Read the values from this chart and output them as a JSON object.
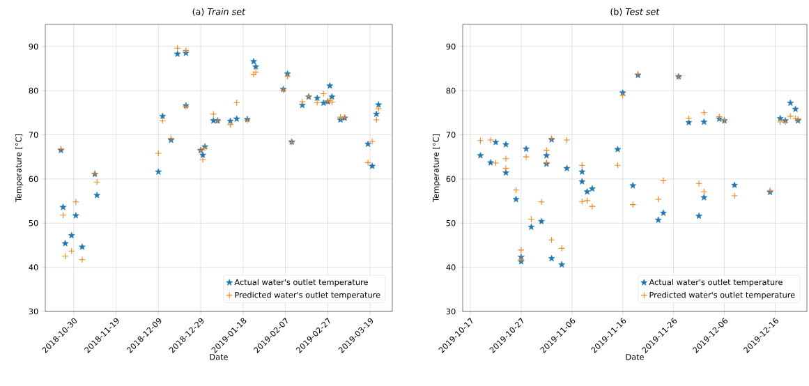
{
  "chart_data": [
    {
      "type": "scatter",
      "title": "(a) *Train set*",
      "xlabel": "Date",
      "ylabel": "Temperature [°C]",
      "grid": true,
      "legend": "bottom right",
      "xlim": [
        "2018-10-16T14:00",
        "2019-03-29T12:00"
      ],
      "ylim": [
        30,
        95
      ],
      "xticks": [
        {
          "value": "2018-10-30",
          "label": "2018-10-30"
        },
        {
          "value": "2018-11-19",
          "label": "2018-11-19"
        },
        {
          "value": "2018-12-09",
          "label": "2018-12-09"
        },
        {
          "value": "2018-12-29",
          "label": "2018-12-29"
        },
        {
          "value": "2019-01-18",
          "label": "2019-01-18"
        },
        {
          "value": "2019-02-07",
          "label": "2019-02-07"
        },
        {
          "value": "2019-02-27",
          "label": "2019-02-27"
        },
        {
          "value": "2019-03-19",
          "label": "2019-03-19"
        }
      ],
      "yticks": [
        30,
        40,
        50,
        60,
        70,
        80,
        90
      ],
      "x": [
        "2018-10-24",
        "2018-10-25",
        "2018-10-26",
        "2018-10-29",
        "2018-10-31",
        "2018-11-03",
        "2018-11-09",
        "2018-11-10",
        "2018-12-09",
        "2018-12-11",
        "2018-12-15",
        "2018-12-18",
        "2018-12-22",
        "2018-12-22",
        "2018-12-29",
        "2018-12-30",
        "2018-12-31",
        "2019-01-04",
        "2019-01-06",
        "2019-01-12",
        "2019-01-15",
        "2019-01-20",
        "2019-01-23",
        "2019-01-24",
        "2019-02-06",
        "2019-02-08",
        "2019-02-10",
        "2019-02-15",
        "2019-02-18",
        "2019-02-22",
        "2019-02-25",
        "2019-02-27",
        "2019-02-28",
        "2019-03-01",
        "2019-03-05",
        "2019-03-07",
        "2019-03-18",
        "2019-03-20",
        "2019-03-22",
        "2019-03-23"
      ],
      "series": [
        {
          "name": "Actual water's outlet temperature",
          "color": "#1f77b4",
          "marker": "star",
          "values": [
            66.5,
            53.6,
            45.4,
            47.2,
            51.7,
            44.6,
            61.1,
            56.3,
            61.6,
            74.2,
            68.8,
            88.3,
            88.5,
            76.6,
            66.5,
            65.4,
            67.3,
            73.2,
            73.2,
            73.1,
            73.6,
            73.5,
            86.6,
            85.4,
            80.3,
            83.8,
            68.4,
            76.7,
            78.6,
            78.3,
            77.2,
            77.5,
            81.1,
            78.6,
            73.4,
            73.8,
            67.9,
            62.9,
            74.7,
            76.8
          ]
        },
        {
          "name": "Predicted water's outlet temperature",
          "color": "#ff7f0e",
          "marker": "cross",
          "values": [
            66.8,
            51.8,
            42.5,
            43.7,
            54.8,
            41.7,
            61.2,
            59.3,
            65.8,
            73.2,
            69.2,
            89.6,
            89.1,
            76.4,
            66.5,
            64.4,
            67.0,
            74.7,
            73.2,
            72.3,
            77.3,
            73.3,
            83.7,
            84.2,
            80.1,
            83.2,
            68.3,
            77.5,
            78.7,
            77.3,
            79.3,
            77.6,
            77.8,
            77.4,
            74.0,
            74.0,
            63.7,
            68.5,
            73.4,
            75.9
          ]
        }
      ]
    },
    {
      "type": "scatter",
      "title": "(b) *Test set*",
      "xlabel": "Date",
      "ylabel": "Temperature [°C]",
      "grid": true,
      "legend": "bottom right",
      "xlim": [
        "2019-10-15T12:00",
        "2019-12-22T06:00"
      ],
      "ylim": [
        30,
        95
      ],
      "xticks": [
        {
          "value": "2019-10-17",
          "label": "2019-10-17"
        },
        {
          "value": "2019-10-27",
          "label": "2019-10-27"
        },
        {
          "value": "2019-11-06",
          "label": "2019-11-06"
        },
        {
          "value": "2019-11-16",
          "label": "2019-11-16"
        },
        {
          "value": "2019-11-26",
          "label": "2019-11-26"
        },
        {
          "value": "2019-12-06",
          "label": "2019-12-06"
        },
        {
          "value": "2019-12-16",
          "label": "2019-12-16"
        }
      ],
      "yticks": [
        30,
        40,
        50,
        60,
        70,
        80,
        90
      ],
      "x": [
        "2019-10-19",
        "2019-10-21",
        "2019-10-22",
        "2019-10-24",
        "2019-10-24",
        "2019-10-26",
        "2019-10-27",
        "2019-10-27",
        "2019-10-28",
        "2019-10-29",
        "2019-10-31",
        "2019-11-01",
        "2019-11-01",
        "2019-11-02",
        "2019-11-02",
        "2019-11-04",
        "2019-11-05",
        "2019-11-08",
        "2019-11-08",
        "2019-11-09",
        "2019-11-10",
        "2019-11-15",
        "2019-11-16",
        "2019-11-18",
        "2019-11-19",
        "2019-11-23",
        "2019-11-24",
        "2019-11-27",
        "2019-11-29",
        "2019-12-01",
        "2019-12-02",
        "2019-12-02",
        "2019-12-05",
        "2019-12-06",
        "2019-12-08",
        "2019-12-15",
        "2019-12-17",
        "2019-12-18",
        "2019-12-19",
        "2019-12-20",
        "2019-12-20T12:00"
      ],
      "series": [
        {
          "name": "Actual water's outlet temperature",
          "color": "#1f77b4",
          "marker": "star",
          "values": [
            65.3,
            63.7,
            68.3,
            67.8,
            61.4,
            55.4,
            42.3,
            41.3,
            66.8,
            49.1,
            50.4,
            65.3,
            63.4,
            68.9,
            42.0,
            40.6,
            62.4,
            61.6,
            59.4,
            57.1,
            57.8,
            66.7,
            79.5,
            58.5,
            83.5,
            50.7,
            52.3,
            83.2,
            72.8,
            51.6,
            55.8,
            72.9,
            73.6,
            73.2,
            58.6,
            57.0,
            73.7,
            73.2,
            77.2,
            75.8,
            73.2
          ]
        },
        {
          "name": "Predicted water's outlet temperature",
          "color": "#ff7f0e",
          "marker": "cross",
          "values": [
            68.7,
            68.8,
            63.6,
            64.6,
            62.4,
            57.5,
            43.9,
            41.8,
            65.0,
            50.9,
            54.8,
            66.5,
            63.7,
            69.2,
            46.2,
            44.3,
            68.8,
            63.1,
            54.9,
            55.1,
            53.8,
            63.1,
            78.9,
            54.2,
            83.8,
            55.4,
            59.6,
            83.1,
            73.7,
            59.0,
            57.1,
            75.0,
            74.1,
            73.4,
            56.2,
            57.4,
            72.9,
            72.9,
            74.2,
            73.7,
            73.6
          ]
        }
      ]
    }
  ]
}
